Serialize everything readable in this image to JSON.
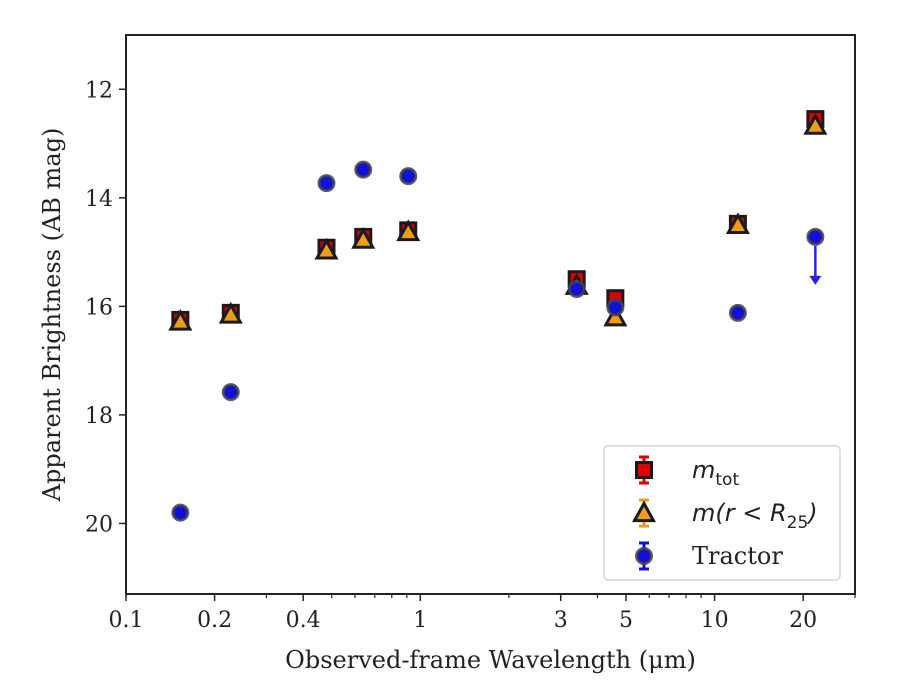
{
  "chart_data": {
    "type": "scatter",
    "title": "",
    "xlabel": "Observed-frame Wavelength (μm)",
    "ylabel": "Apparent Brightness (AB mag)",
    "xscale": "log",
    "xlim": [
      0.1,
      30
    ],
    "ylim": [
      21.3,
      11.0
    ],
    "y_inverted": true,
    "grid": false,
    "legend_position": "lower-right",
    "x_ticks": [
      {
        "value": 0.1,
        "label": "0.1"
      },
      {
        "value": 0.2,
        "label": "0.2"
      },
      {
        "value": 0.4,
        "label": "0.4"
      },
      {
        "value": 1,
        "label": "1"
      },
      {
        "value": 3,
        "label": "3"
      },
      {
        "value": 5,
        "label": "5"
      },
      {
        "value": 10,
        "label": "10"
      },
      {
        "value": 20,
        "label": "20"
      }
    ],
    "y_ticks": [
      {
        "value": 12,
        "label": "12"
      },
      {
        "value": 14,
        "label": "14"
      },
      {
        "value": 16,
        "label": "16"
      },
      {
        "value": 18,
        "label": "18"
      },
      {
        "value": 20,
        "label": "20"
      }
    ],
    "series": [
      {
        "name": "m_tot",
        "legend_base": "m",
        "legend_sub": "tot",
        "legend_suffix": "",
        "marker": "square",
        "color": "#e00000",
        "edge": "#1a1a1a",
        "points": [
          {
            "x": 0.153,
            "y": 16.25
          },
          {
            "x": 0.227,
            "y": 16.12
          },
          {
            "x": 0.48,
            "y": 14.92
          },
          {
            "x": 0.64,
            "y": 14.72
          },
          {
            "x": 0.91,
            "y": 14.6
          },
          {
            "x": 3.4,
            "y": 15.5
          },
          {
            "x": 4.6,
            "y": 15.85
          },
          {
            "x": 12.0,
            "y": 14.48
          },
          {
            "x": 22.0,
            "y": 12.55
          }
        ]
      },
      {
        "name": "m(r < R_25)",
        "legend_base": "m(r < R",
        "legend_sub": "25",
        "legend_suffix": ")",
        "marker": "triangle",
        "color": "#f39c12",
        "edge": "#1a1a1a",
        "points": [
          {
            "x": 0.153,
            "y": 16.28
          },
          {
            "x": 0.227,
            "y": 16.15
          },
          {
            "x": 0.48,
            "y": 14.97
          },
          {
            "x": 0.64,
            "y": 14.77
          },
          {
            "x": 0.91,
            "y": 14.63
          },
          {
            "x": 3.4,
            "y": 15.62
          },
          {
            "x": 4.6,
            "y": 16.2
          },
          {
            "x": 12.0,
            "y": 14.5
          },
          {
            "x": 22.0,
            "y": 12.67
          }
        ]
      },
      {
        "name": "Tractor",
        "legend_base": "Tractor",
        "legend_sub": "",
        "legend_suffix": "",
        "marker": "circle",
        "color": "#1010dd",
        "edge": "#444444",
        "points": [
          {
            "x": 0.153,
            "y": 19.8
          },
          {
            "x": 0.227,
            "y": 17.58
          },
          {
            "x": 0.48,
            "y": 13.73
          },
          {
            "x": 0.64,
            "y": 13.48
          },
          {
            "x": 0.91,
            "y": 13.6
          },
          {
            "x": 3.4,
            "y": 15.68
          },
          {
            "x": 4.6,
            "y": 16.02
          },
          {
            "x": 12.0,
            "y": 16.12
          },
          {
            "x": 22.0,
            "y": 14.72,
            "upper_limit": true
          }
        ]
      }
    ]
  }
}
